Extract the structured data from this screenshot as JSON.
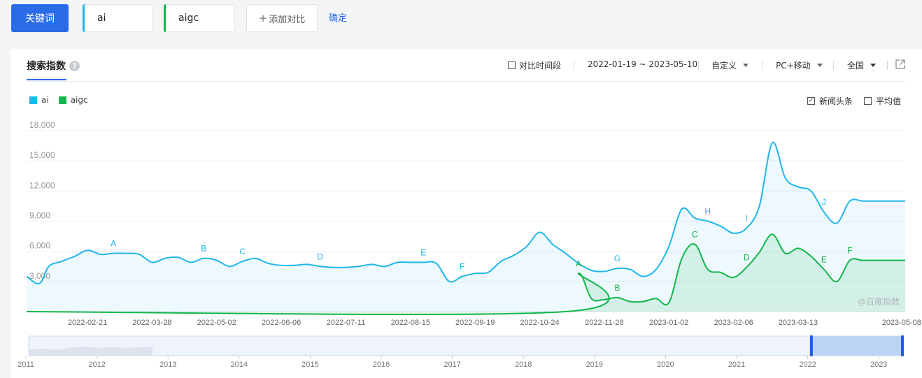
{
  "query_bar": {
    "keyword_button": "关键词",
    "terms": [
      {
        "label": "ai",
        "color": "#1fb6ea"
      },
      {
        "label": "aigc",
        "color": "#12b64a"
      }
    ],
    "add_compare": "添加对比",
    "confirm": "确定"
  },
  "panel": {
    "tab_label": "搜索指数",
    "help_icon": "?",
    "compare_period_label": "对比时间段",
    "compare_period_checked": false,
    "date_range": "2022-01-19 ~ 2023-05-10",
    "custom_label": "自定义",
    "device_label": "PC+移动",
    "region_label": "全国",
    "external_link_icon": "external-link-icon",
    "news_headlines_label": "新闻头条",
    "news_headlines_checked": true,
    "average_label": "平均值",
    "average_checked": false,
    "watermark": "@百度指数"
  },
  "chart_data": {
    "type": "area",
    "series": [
      {
        "name": "ai",
        "color": "#1fb6ea",
        "x": [
          "2022-01-19",
          "2022-01-26",
          "2022-01-31",
          "2022-02-07",
          "2022-02-14",
          "2022-02-21",
          "2022-02-28",
          "2022-03-07",
          "2022-03-14",
          "2022-03-21",
          "2022-03-28",
          "2022-04-04",
          "2022-04-11",
          "2022-04-18",
          "2022-04-25",
          "2022-05-02",
          "2022-05-09",
          "2022-05-16",
          "2022-05-23",
          "2022-05-30",
          "2022-06-06",
          "2022-06-13",
          "2022-06-20",
          "2022-06-27",
          "2022-07-04",
          "2022-07-11",
          "2022-07-18",
          "2022-07-25",
          "2022-08-01",
          "2022-08-08",
          "2022-08-15",
          "2022-08-22",
          "2022-08-29",
          "2022-09-05",
          "2022-09-12",
          "2022-09-19",
          "2022-09-26",
          "2022-10-03",
          "2022-10-10",
          "2022-10-17",
          "2022-10-24",
          "2022-10-31",
          "2022-11-07",
          "2022-11-14",
          "2022-11-21",
          "2022-11-28",
          "2022-12-05",
          "2022-12-12",
          "2022-12-19",
          "2022-12-26",
          "2023-01-02",
          "2023-01-09",
          "2023-01-16",
          "2023-01-23",
          "2023-01-30",
          "2023-02-06",
          "2023-02-13",
          "2023-02-20",
          "2023-02-27",
          "2023-03-06",
          "2023-03-13",
          "2023-03-20",
          "2023-03-27",
          "2023-04-03",
          "2023-04-10",
          "2023-04-17",
          "2023-04-24",
          "2023-05-01",
          "2023-05-08",
          "2023-05-10"
        ],
        "values": [
          3500,
          2800,
          4500,
          5000,
          5500,
          6100,
          5700,
          5800,
          5800,
          5700,
          4900,
          5300,
          5400,
          4900,
          5300,
          5100,
          4500,
          5000,
          5300,
          4800,
          4600,
          4600,
          4700,
          4500,
          4400,
          4400,
          4500,
          4700,
          4500,
          4900,
          4900,
          4900,
          4800,
          3000,
          3500,
          3800,
          3900,
          5000,
          5600,
          6500,
          7900,
          6700,
          5800,
          4800,
          4100,
          4000,
          4300,
          4200,
          3500,
          4200,
          6500,
          10200,
          9300,
          9000,
          8500,
          7800,
          8300,
          10500,
          16800,
          13300,
          12400,
          12000,
          9900,
          8800,
          11000,
          11000,
          11000,
          11000,
          11000,
          11000
        ],
        "peaks": [
          {
            "label": "A",
            "x": "2022-03-07"
          },
          {
            "label": "B",
            "x": "2022-04-25"
          },
          {
            "label": "C",
            "x": "2022-05-16"
          },
          {
            "label": "D",
            "x": "2022-06-27"
          },
          {
            "label": "E",
            "x": "2022-08-22"
          },
          {
            "label": "F",
            "x": "2022-09-12"
          },
          {
            "label": "G",
            "x": "2022-12-05"
          },
          {
            "label": "H",
            "x": "2023-01-23"
          },
          {
            "label": "I",
            "x": "2023-02-13"
          },
          {
            "label": "J",
            "x": "2023-03-27"
          }
        ]
      },
      {
        "name": "aigc",
        "color": "#12b64a",
        "x": [
          "2022-11-07",
          "2022-11-14",
          "2022-11-21",
          "2022-11-28",
          "2022-12-05",
          "2022-12-12",
          "2022-12-19",
          "2022-12-26",
          "2023-01-02",
          "2023-01-09",
          "2023-01-16",
          "2023-01-23",
          "2023-01-30",
          "2023-02-06",
          "2023-02-13",
          "2023-02-20",
          "2023-02-27",
          "2023-03-06",
          "2023-03-13",
          "2023-03-20",
          "2023-03-27",
          "2023-04-03",
          "2023-04-10",
          "2023-04-17",
          "2023-04-24",
          "2023-05-01",
          "2023-05-08",
          "2023-05-10"
        ],
        "values": [
          0,
          3800,
          1300,
          1200,
          1400,
          1000,
          1000,
          1300,
          900,
          5300,
          6700,
          4200,
          3900,
          3400,
          4400,
          5900,
          7700,
          5800,
          6300,
          5500,
          4200,
          3000,
          5100,
          5100,
          5100,
          5100,
          5100,
          5100
        ],
        "peaks": [
          {
            "label": "A",
            "x": "2022-11-14"
          },
          {
            "label": "B",
            "x": "2022-12-05"
          },
          {
            "label": "C",
            "x": "2023-01-16"
          },
          {
            "label": "D",
            "x": "2023-02-13"
          },
          {
            "label": "E",
            "x": "2023-03-27"
          },
          {
            "label": "F",
            "x": "2023-04-10"
          }
        ]
      }
    ],
    "y_ticks": [
      "18,000",
      "15,000",
      "12,000",
      "9,000",
      "6,000",
      "3,000"
    ],
    "x_ticks": [
      "2022-02-21",
      "2022-03-28",
      "2022-05-02",
      "2022-06-06",
      "2022-07-11",
      "2022-08-15",
      "2022-09-19",
      "2022-10-24",
      "2022-11-28",
      "2023-01-02",
      "2023-02-06",
      "2023-03-13",
      "2023-05-08"
    ],
    "ylim": [
      0,
      18000
    ],
    "grid": true,
    "legend": "top-left"
  },
  "overview": {
    "years": [
      "2011",
      "2012",
      "2013",
      "2014",
      "2015",
      "2016",
      "2017",
      "2018",
      "2019",
      "2020",
      "2021",
      "2022",
      "2023"
    ],
    "selection": [
      "2022-01-19",
      "2023-05-10"
    ]
  }
}
